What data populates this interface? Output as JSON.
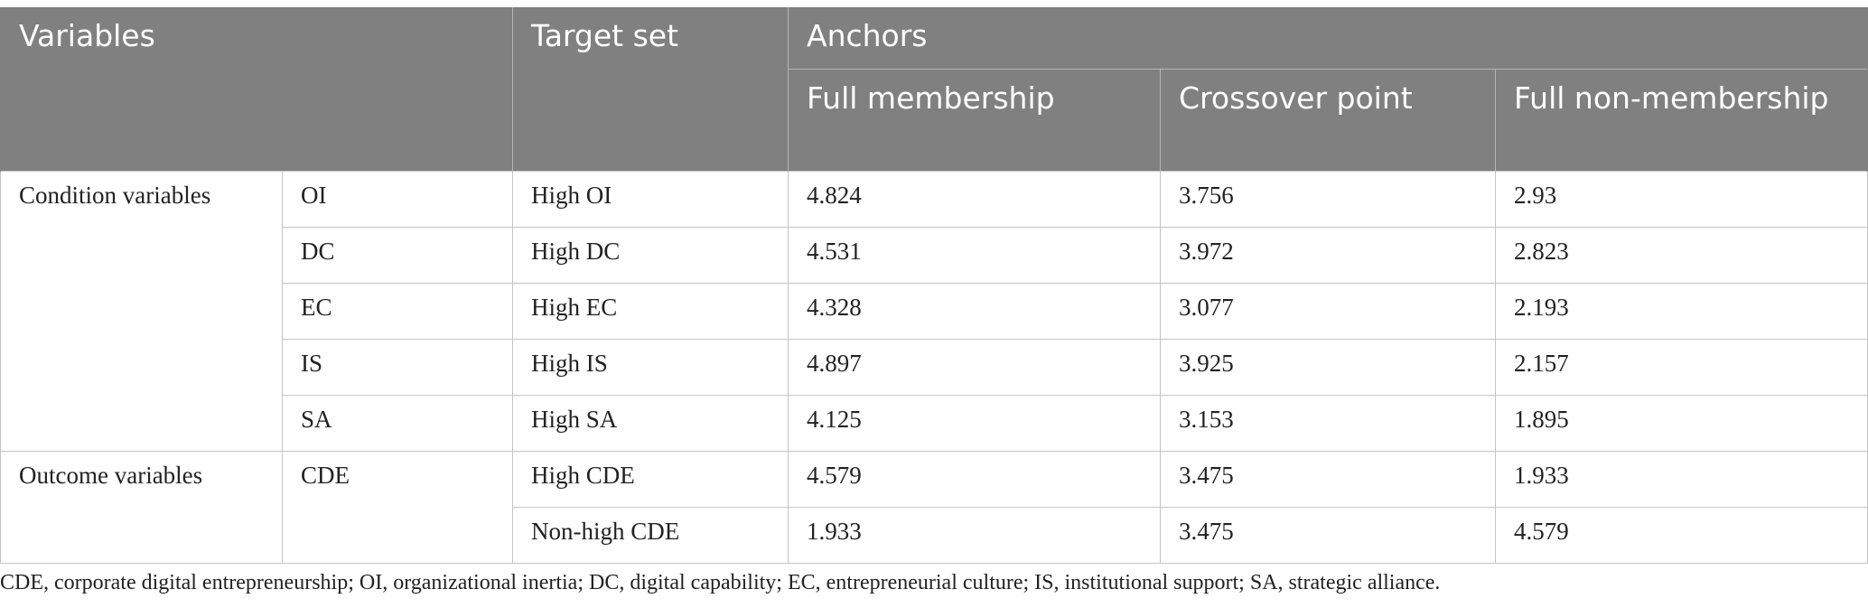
{
  "header": {
    "variables": "Variables",
    "target_set": "Target set",
    "anchors": "Anchors",
    "full_membership": "Full membership",
    "crossover_point": "Crossover point",
    "full_non_membership": "Full non-membership"
  },
  "groups": {
    "condition": "Condition variables",
    "outcome": "Outcome variables"
  },
  "rows": [
    {
      "var": "OI",
      "target": "High OI",
      "full": "4.824",
      "cross": "3.756",
      "non": "2.93"
    },
    {
      "var": "DC",
      "target": "High DC",
      "full": "4.531",
      "cross": "3.972",
      "non": "2.823"
    },
    {
      "var": "EC",
      "target": "High EC",
      "full": "4.328",
      "cross": "3.077",
      "non": "2.193"
    },
    {
      "var": "IS",
      "target": "High IS",
      "full": "4.897",
      "cross": "3.925",
      "non": "2.157"
    },
    {
      "var": "SA",
      "target": "High SA",
      "full": "4.125",
      "cross": "3.153",
      "non": "1.895"
    },
    {
      "var": "CDE",
      "target": "High CDE",
      "full": "4.579",
      "cross": "3.475",
      "non": "1.933"
    },
    {
      "var": "",
      "target": "Non-high CDE",
      "full": "1.933",
      "cross": "3.475",
      "non": "4.579"
    }
  ],
  "footnote": "CDE, corporate digital entrepreneurship; OI, organizational inertia; DC, digital capability; EC, entrepreneurial culture; IS, institutional support; SA, strategic alliance."
}
